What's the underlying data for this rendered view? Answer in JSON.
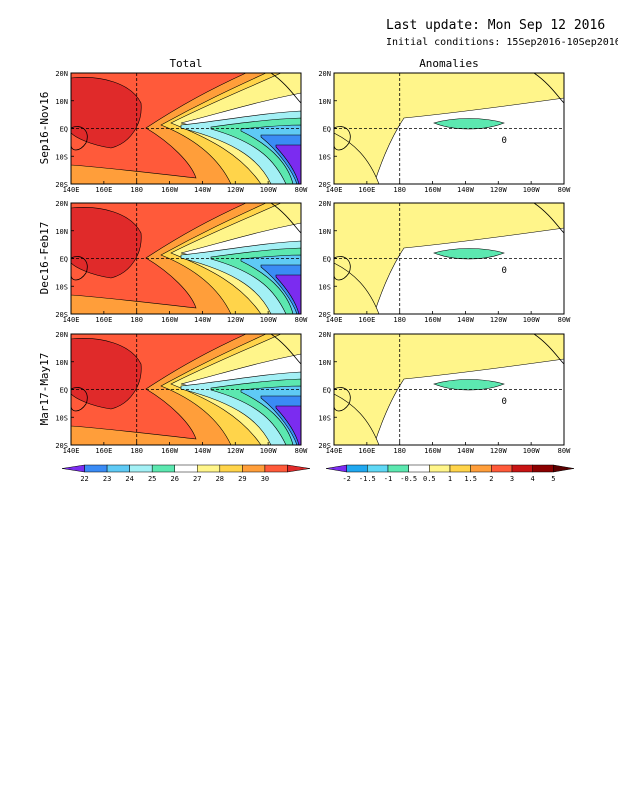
{
  "header": {
    "last_update": "Last update: Mon Sep 12 2016",
    "initial_conditions": "Initial conditions: 15Sep2016-10Sep2016"
  },
  "columns": [
    "Total",
    "Anomalies"
  ],
  "rows": [
    "Sep16-Nov16",
    "Dec16-Feb17",
    "Mar17-May17"
  ],
  "axes": {
    "lon_labels": [
      "140E",
      "160E",
      "180",
      "160W",
      "140W",
      "120W",
      "100W",
      "80W"
    ],
    "lat_labels": [
      "20N",
      "10N",
      "EQ",
      "10S",
      "20S"
    ]
  },
  "contour_labels": {
    "anomaly": "0"
  },
  "colorbars": {
    "total": {
      "labels": [
        "22",
        "23",
        "24",
        "25",
        "26",
        "27",
        "28",
        "29",
        "30"
      ],
      "colors": [
        "#7b2cf0",
        "#3a8bf5",
        "#5fcaf5",
        "#a3f0f5",
        "#5ce8b0",
        "#ffffff",
        "#fff58a",
        "#ffd44a",
        "#ff9e3a",
        "#ff5a3a",
        "#e02a2a"
      ]
    },
    "anomaly": {
      "labels": [
        "-2",
        "-1.5",
        "-1",
        "-0.5",
        "0.5",
        "1",
        "1.5",
        "2",
        "3",
        "4",
        "5"
      ],
      "colors": [
        "#7b2cf0",
        "#20a8f0",
        "#5fd8f5",
        "#5ce8b0",
        "#ffffff",
        "#fff58a",
        "#ffd44a",
        "#ff9e3a",
        "#ff5a3a",
        "#c81414",
        "#8b0000",
        "#5a0000"
      ]
    }
  }
}
